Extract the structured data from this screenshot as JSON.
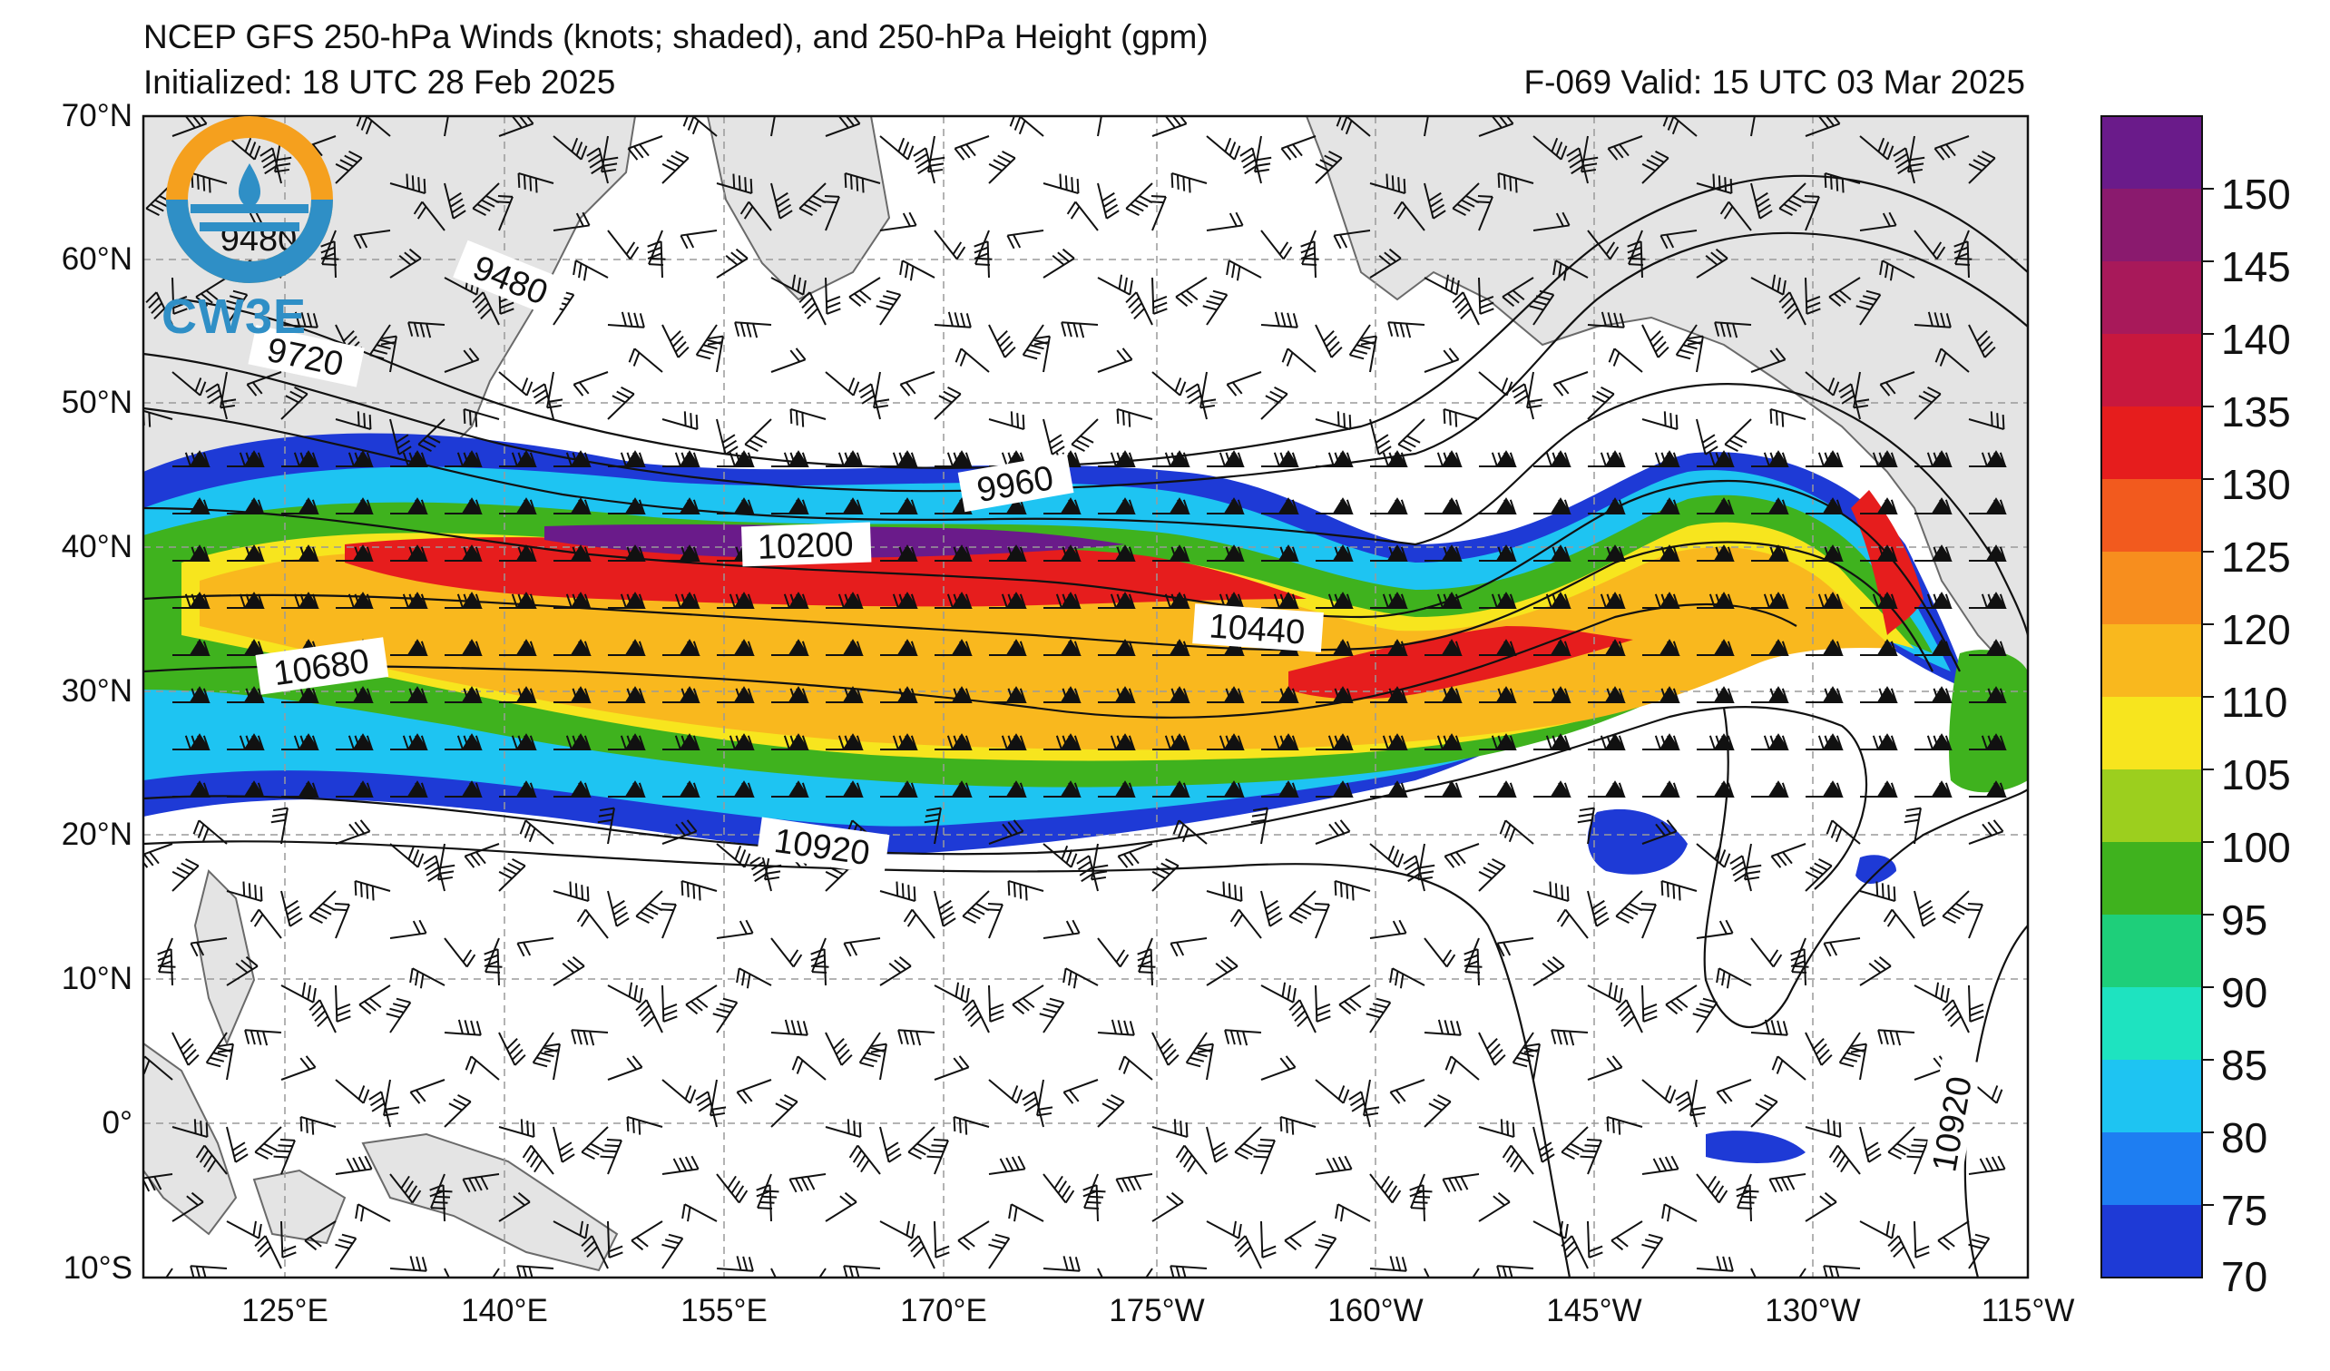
{
  "header": {
    "title": "NCEP GFS 250-hPa Winds (knots; shaded), and 250-hPa Height (gpm)",
    "initialized": "Initialized: 18 UTC 28 Feb 2025",
    "valid": "F-069  Valid: 15 UTC 03 Mar 2025"
  },
  "logo": {
    "text": "CW3E"
  },
  "axes": {
    "lat_labels": [
      "70°N",
      "60°N",
      "50°N",
      "40°N",
      "30°N",
      "20°N",
      "10°N",
      "0°",
      "10°S"
    ],
    "lon_labels": [
      "125°E",
      "140°E",
      "155°E",
      "170°E",
      "175°W",
      "160°W",
      "145°W",
      "130°W",
      "115°W"
    ]
  },
  "contours": {
    "labels": [
      "9480",
      "9720",
      "9960",
      "10200",
      "10440",
      "10680",
      "10920",
      "10920",
      "9480"
    ]
  },
  "colorbar": {
    "labels": [
      "150",
      "145",
      "140",
      "135",
      "130",
      "125",
      "120",
      "110",
      "105",
      "100",
      "95",
      "90",
      "85",
      "80",
      "75",
      "70"
    ],
    "colors": [
      "#6a1b8a",
      "#8a1a6e",
      "#a8195a",
      "#c8183e",
      "#e61d1d",
      "#f25a1e",
      "#f78e1e",
      "#f9b81e",
      "#f7e51e",
      "#9ccf1e",
      "#3fb21e",
      "#1ecf7a",
      "#1ee3c0",
      "#1ec4f2",
      "#1e7ef2",
      "#1e3ad6"
    ]
  },
  "colors": {
    "land": "#e4e4e4",
    "grid": "#9a9a9a",
    "coast": "#6a6a6a"
  }
}
